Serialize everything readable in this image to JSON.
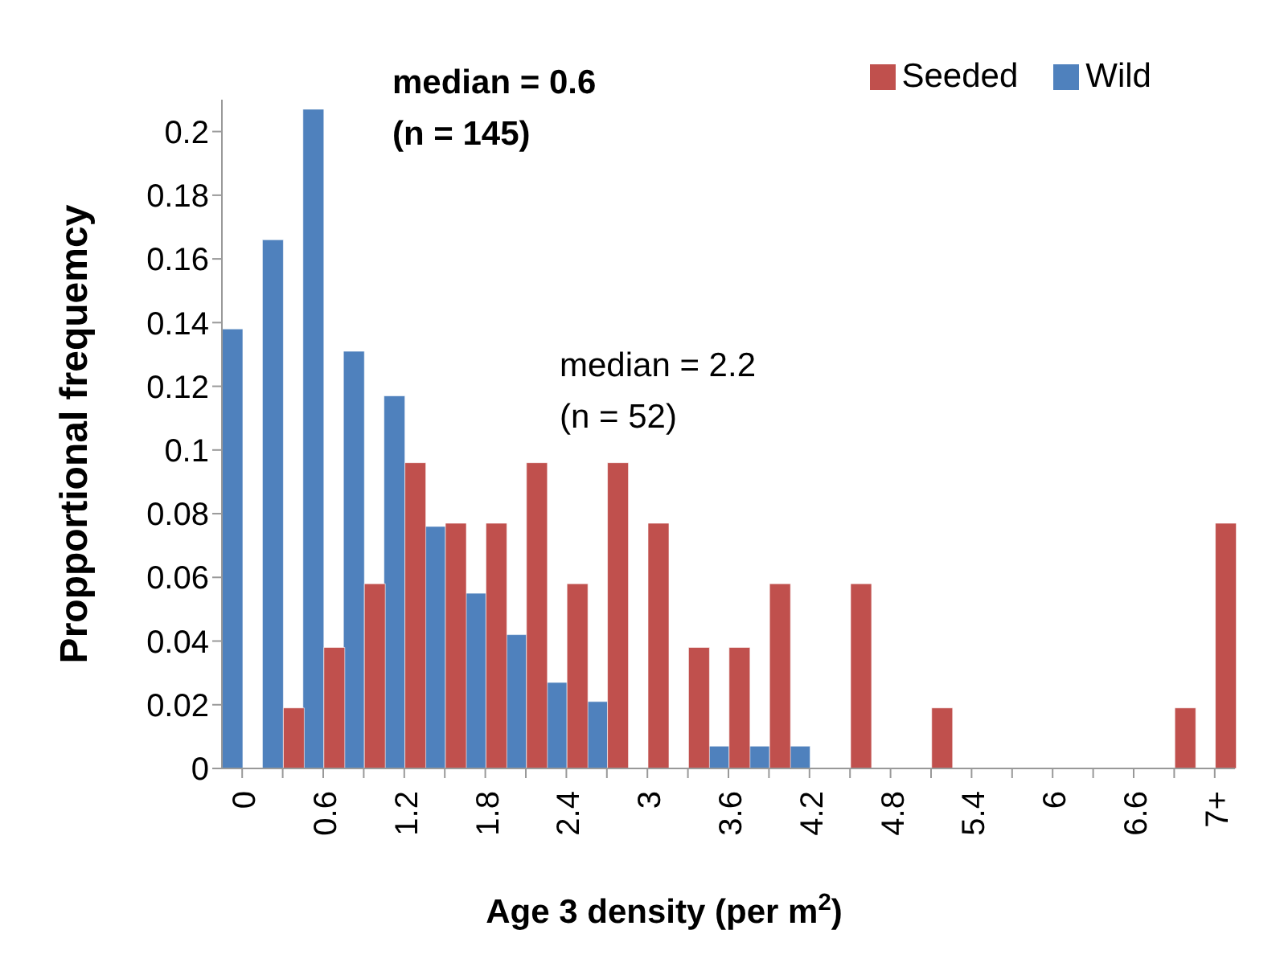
{
  "chart_data": {
    "type": "bar",
    "xlabel": "Age 3 density (per m$^{2}$)",
    "ylabel": "Propportional frequemcy",
    "categories": [
      "0",
      null,
      "0.6",
      null,
      "1.2",
      null,
      "1.8",
      null,
      "2.4",
      null,
      "3",
      null,
      "3.6",
      null,
      "4.2",
      null,
      "4.8",
      null,
      "5.4",
      null,
      "6",
      null,
      "6.6",
      null,
      "7+"
    ],
    "series": [
      {
        "name": "Wild",
        "color": "#4f81bd",
        "values": [
          0.138,
          0.166,
          0.207,
          0.131,
          0.117,
          0.076,
          0.055,
          0.042,
          0.027,
          0.021,
          0,
          0,
          0.007,
          0.007,
          0.007,
          0,
          0,
          0,
          0,
          0,
          0,
          0,
          0,
          0,
          0
        ]
      },
      {
        "name": "Seeded",
        "color": "#c0504d",
        "values": [
          0,
          0.019,
          0.038,
          0.058,
          0.096,
          0.077,
          0.077,
          0.096,
          0.058,
          0.096,
          0.077,
          0.038,
          0.038,
          0.058,
          0,
          0.058,
          0,
          0.019,
          0,
          0,
          0,
          0,
          0,
          0.019,
          0.077
        ]
      }
    ],
    "ylim": [
      0,
      0.21
    ],
    "yticks": [
      0,
      0.02,
      0.04,
      0.06,
      0.08,
      0.1,
      0.12,
      0.14,
      0.16,
      0.18,
      0.2
    ],
    "grid": false,
    "legend": "top right",
    "annotations": [
      "median = 0.6\n(n = 145)",
      "median = 2.2\n(n = 52)"
    ]
  }
}
